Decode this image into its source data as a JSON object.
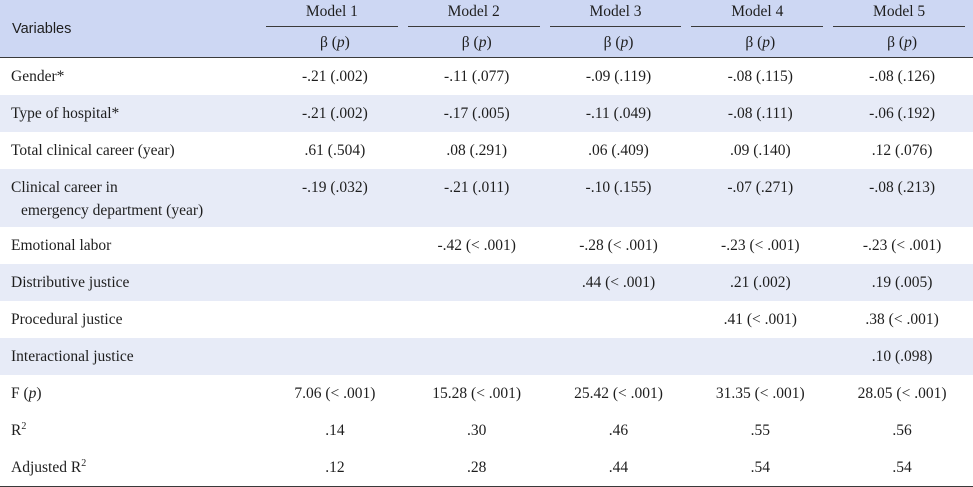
{
  "table": {
    "header": {
      "variables_label": "Variables",
      "models": [
        "Model 1",
        "Model 2",
        "Model 3",
        "Model 4",
        "Model 5"
      ],
      "beta_symbol": "β (",
      "p_letter": "p",
      "beta_close": ")"
    },
    "rows": [
      {
        "label": "Gender*",
        "label_line2": "",
        "values": [
          "-.21 (.002)",
          "-.11 (.077)",
          "-.09 (.119)",
          "-.08 (.115)",
          "-.08 (.126)"
        ]
      },
      {
        "label": "Type of hospital*",
        "label_line2": "",
        "values": [
          "-.21 (.002)",
          "-.17 (.005)",
          "-.11 (.049)",
          "-.08 (.111)",
          "-.06 (.192)"
        ]
      },
      {
        "label": "Total clinical career (year)",
        "label_line2": "",
        "values": [
          ".61 (.504)",
          ".08 (.291)",
          ".06 (.409)",
          ".09 (.140)",
          ".12 (.076)"
        ]
      },
      {
        "label": "Clinical career in",
        "label_line2": "emergency department (year)",
        "values": [
          "-.19 (.032)",
          "-.21 (.011)",
          "-.10 (.155)",
          "-.07 (.271)",
          "-.08 (.213)"
        ]
      },
      {
        "label": "Emotional labor",
        "label_line2": "",
        "values": [
          "",
          "-.42 (< .001)",
          "-.28 (< .001)",
          "-.23 (< .001)",
          "-.23 (< .001)"
        ]
      },
      {
        "label": "Distributive justice",
        "label_line2": "",
        "values": [
          "",
          "",
          ".44 (< .001)",
          ".21 (.002)",
          ".19 (.005)"
        ]
      },
      {
        "label": "Procedural justice",
        "label_line2": "",
        "values": [
          "",
          "",
          "",
          ".41 (< .001)",
          ".38 (< .001)"
        ]
      },
      {
        "label": "Interactional justice",
        "label_line2": "",
        "values": [
          "",
          "",
          "",
          "",
          ".10 (.098)"
        ]
      },
      {
        "label": "F (",
        "label_p": "p",
        "label_close": ")",
        "values": [
          "7.06 (< .001)",
          "15.28 (< .001)",
          "25.42 (< .001)",
          "31.35 (< .001)",
          "28.05 (< .001)"
        ]
      },
      {
        "label": "R",
        "label_sup": "2",
        "values": [
          ".14",
          ".30",
          ".46",
          ".55",
          ".56"
        ]
      },
      {
        "label": "Adjusted R",
        "label_sup": "2",
        "values": [
          ".12",
          ".28",
          ".44",
          ".54",
          ".54"
        ]
      }
    ],
    "colors": {
      "header_bg": "#cdd7f3",
      "stripe_bg": "#e7ebf7",
      "rule": "#3a3a3a"
    }
  }
}
